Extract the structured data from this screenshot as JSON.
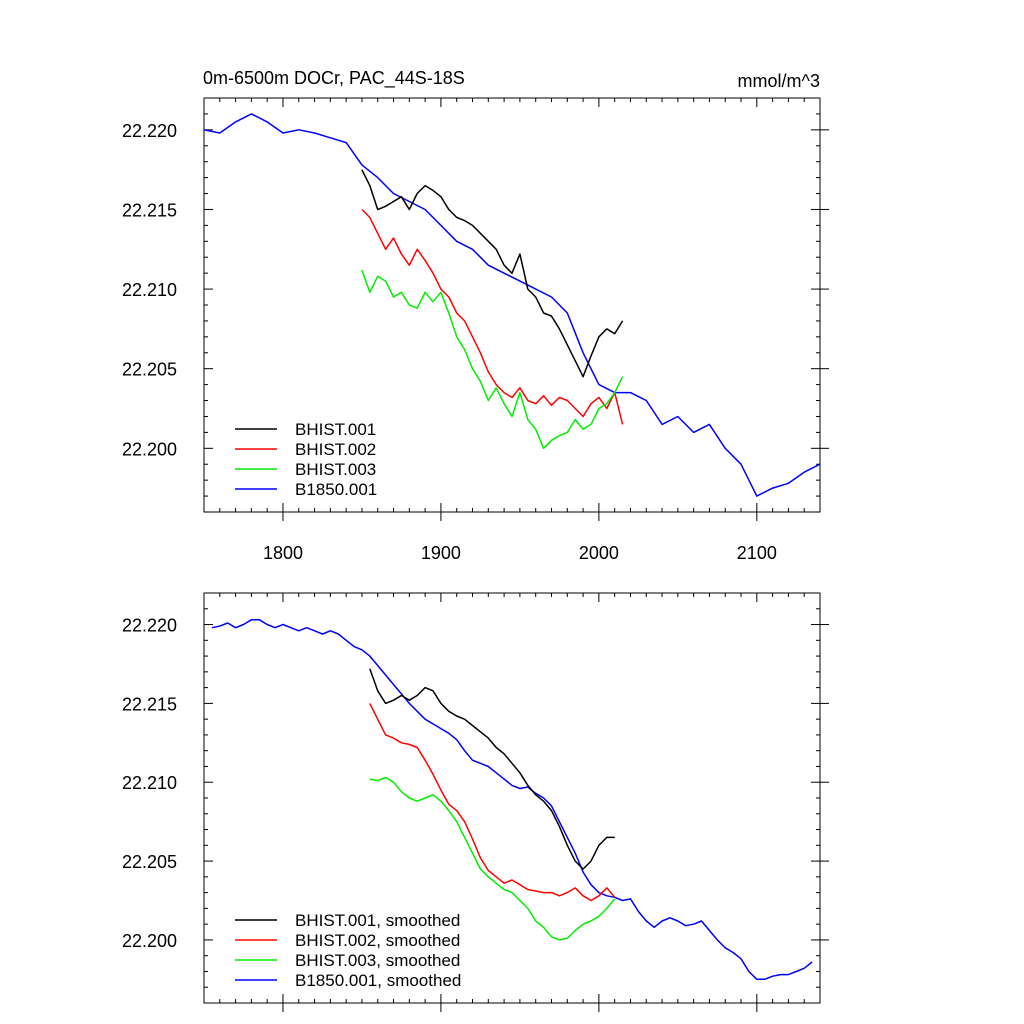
{
  "page": {
    "title_left": "0m-6500m DOCr, PAC_44S-18S",
    "title_right": "mmol/m^3"
  },
  "chart_data": [
    {
      "type": "line",
      "title": "0m-6500m DOCr, PAC_44S-18S",
      "units": "mmol/m^3",
      "xlim": [
        1750,
        2140
      ],
      "ylim": [
        22.196,
        22.222
      ],
      "xticks": [
        1800,
        1900,
        2000,
        2100
      ],
      "yticks": [
        22.2,
        22.205,
        22.21,
        22.215,
        22.22
      ],
      "ytick_labels": [
        "22.200",
        "22.205",
        "22.210",
        "22.215",
        "22.220"
      ],
      "xtick_labels": [
        "1800",
        "1900",
        "2000",
        "2100"
      ],
      "legend_placement": "bottom-left",
      "series": [
        {
          "name": "BHIST.001",
          "color": "#000000",
          "x": [
            1850,
            1855,
            1860,
            1865,
            1870,
            1875,
            1880,
            1885,
            1890,
            1895,
            1900,
            1905,
            1910,
            1915,
            1920,
            1925,
            1930,
            1935,
            1940,
            1945,
            1950,
            1955,
            1960,
            1965,
            1970,
            1975,
            1980,
            1985,
            1990,
            1995,
            2000,
            2005,
            2010,
            2015
          ],
          "y": [
            22.2175,
            22.2165,
            22.215,
            22.2152,
            22.2155,
            22.2158,
            22.215,
            22.216,
            22.2165,
            22.2162,
            22.2158,
            22.215,
            22.2145,
            22.2143,
            22.214,
            22.2135,
            22.213,
            22.2125,
            22.2115,
            22.211,
            22.2122,
            22.21,
            22.2095,
            22.2085,
            22.2083,
            22.2075,
            22.2065,
            22.2055,
            22.2045,
            22.2058,
            22.207,
            22.2075,
            22.2072,
            22.208
          ]
        },
        {
          "name": "BHIST.002",
          "color": "#ff0000",
          "x": [
            1850,
            1855,
            1860,
            1865,
            1870,
            1875,
            1880,
            1885,
            1890,
            1895,
            1900,
            1905,
            1910,
            1915,
            1920,
            1925,
            1930,
            1935,
            1940,
            1945,
            1950,
            1955,
            1960,
            1965,
            1970,
            1975,
            1980,
            1985,
            1990,
            1995,
            2000,
            2005,
            2010,
            2015
          ],
          "y": [
            22.215,
            22.2145,
            22.2135,
            22.2125,
            22.2132,
            22.2122,
            22.2115,
            22.2125,
            22.2118,
            22.211,
            22.21,
            22.2095,
            22.2085,
            22.208,
            22.207,
            22.206,
            22.2048,
            22.204,
            22.2035,
            22.2032,
            22.2038,
            22.203,
            22.2028,
            22.2033,
            22.2027,
            22.2032,
            22.203,
            22.2025,
            22.202,
            22.2028,
            22.2032,
            22.2025,
            22.2035,
            22.2015
          ]
        },
        {
          "name": "BHIST.003",
          "color": "#00ee00",
          "x": [
            1850,
            1855,
            1860,
            1865,
            1870,
            1875,
            1880,
            1885,
            1890,
            1895,
            1900,
            1905,
            1910,
            1915,
            1920,
            1925,
            1930,
            1935,
            1940,
            1945,
            1950,
            1955,
            1960,
            1965,
            1970,
            1975,
            1980,
            1985,
            1990,
            1995,
            2000,
            2005,
            2010,
            2015
          ],
          "y": [
            22.2112,
            22.2098,
            22.2108,
            22.2105,
            22.2095,
            22.2098,
            22.209,
            22.2088,
            22.2098,
            22.2092,
            22.2098,
            22.2085,
            22.207,
            22.2062,
            22.205,
            22.2042,
            22.203,
            22.2038,
            22.2028,
            22.202,
            22.2035,
            22.2018,
            22.2012,
            22.2,
            22.2005,
            22.2008,
            22.201,
            22.2018,
            22.2012,
            22.2015,
            22.2025,
            22.2028,
            22.2035,
            22.2045
          ]
        },
        {
          "name": "B1850.001",
          "color": "#0000ff",
          "x": [
            1750,
            1760,
            1770,
            1780,
            1790,
            1800,
            1810,
            1820,
            1830,
            1840,
            1850,
            1860,
            1870,
            1880,
            1890,
            1900,
            1910,
            1920,
            1930,
            1940,
            1950,
            1960,
            1970,
            1980,
            1990,
            2000,
            2010,
            2020,
            2030,
            2040,
            2050,
            2060,
            2070,
            2080,
            2090,
            2100,
            2110,
            2120,
            2130,
            2140
          ],
          "y": [
            22.22,
            22.2198,
            22.2205,
            22.221,
            22.2205,
            22.2198,
            22.22,
            22.2198,
            22.2195,
            22.2192,
            22.2178,
            22.217,
            22.216,
            22.2155,
            22.215,
            22.214,
            22.213,
            22.2125,
            22.2115,
            22.211,
            22.2105,
            22.21,
            22.2095,
            22.2085,
            22.206,
            22.204,
            22.2035,
            22.2035,
            22.203,
            22.2015,
            22.202,
            22.201,
            22.2015,
            22.2,
            22.199,
            22.197,
            22.1975,
            22.1978,
            22.1985,
            22.199
          ]
        }
      ]
    },
    {
      "type": "line",
      "xlim": [
        1750,
        2140
      ],
      "ylim": [
        22.196,
        22.222
      ],
      "xticks": [
        1800,
        1900,
        2000,
        2100
      ],
      "yticks": [
        22.2,
        22.205,
        22.21,
        22.215,
        22.22
      ],
      "ytick_labels": [
        "22.200",
        "22.205",
        "22.210",
        "22.215",
        "22.220"
      ],
      "legend_placement": "bottom-left",
      "series": [
        {
          "name": "BHIST.001, smoothed",
          "color": "#000000",
          "x": [
            1855,
            1860,
            1865,
            1870,
            1875,
            1880,
            1885,
            1890,
            1895,
            1900,
            1905,
            1910,
            1915,
            1920,
            1925,
            1930,
            1935,
            1940,
            1945,
            1950,
            1955,
            1960,
            1965,
            1970,
            1975,
            1980,
            1985,
            1990,
            1995,
            2000,
            2005,
            2010
          ],
          "y": [
            22.2172,
            22.2158,
            22.215,
            22.2152,
            22.2155,
            22.2152,
            22.2155,
            22.216,
            22.2158,
            22.215,
            22.2145,
            22.2142,
            22.214,
            22.2136,
            22.2132,
            22.2128,
            22.2122,
            22.2118,
            22.2112,
            22.2106,
            22.2098,
            22.2092,
            22.2088,
            22.2082,
            22.2072,
            22.206,
            22.205,
            22.2045,
            22.205,
            22.206,
            22.2065,
            22.2065
          ]
        },
        {
          "name": "BHIST.002, smoothed",
          "color": "#ff0000",
          "x": [
            1855,
            1860,
            1865,
            1870,
            1875,
            1880,
            1885,
            1890,
            1895,
            1900,
            1905,
            1910,
            1915,
            1920,
            1925,
            1930,
            1935,
            1940,
            1945,
            1950,
            1955,
            1960,
            1965,
            1970,
            1975,
            1980,
            1985,
            1990,
            1995,
            2000,
            2005,
            2010
          ],
          "y": [
            22.215,
            22.214,
            22.213,
            22.2128,
            22.2125,
            22.2124,
            22.2122,
            22.2114,
            22.2105,
            22.2095,
            22.2086,
            22.2082,
            22.2075,
            22.2064,
            22.2052,
            22.2044,
            22.204,
            22.2036,
            22.2038,
            22.2035,
            22.2032,
            22.2031,
            22.203,
            22.203,
            22.2028,
            22.203,
            22.2033,
            22.2028,
            22.2025,
            22.2028,
            22.2033,
            22.2027
          ]
        },
        {
          "name": "BHIST.003, smoothed",
          "color": "#00ee00",
          "x": [
            1855,
            1860,
            1865,
            1870,
            1875,
            1880,
            1885,
            1890,
            1895,
            1900,
            1905,
            1910,
            1915,
            1920,
            1925,
            1930,
            1935,
            1940,
            1945,
            1950,
            1955,
            1960,
            1965,
            1970,
            1975,
            1980,
            1985,
            1990,
            1995,
            2000,
            2005,
            2010
          ],
          "y": [
            22.2102,
            22.2101,
            22.2103,
            22.21,
            22.2094,
            22.209,
            22.2088,
            22.209,
            22.2092,
            22.2088,
            22.2082,
            22.2075,
            22.2065,
            22.2055,
            22.2045,
            22.204,
            22.2036,
            22.2032,
            22.203,
            22.2025,
            22.202,
            22.2012,
            22.2008,
            22.2002,
            22.2,
            22.2001,
            22.2006,
            22.201,
            22.2012,
            22.2015,
            22.202,
            22.2026
          ]
        },
        {
          "name": "B1850.001, smoothed",
          "color": "#0000ff",
          "x": [
            1755,
            1760,
            1765,
            1770,
            1775,
            1780,
            1785,
            1790,
            1795,
            1800,
            1805,
            1810,
            1815,
            1820,
            1825,
            1830,
            1835,
            1840,
            1845,
            1850,
            1855,
            1860,
            1865,
            1870,
            1875,
            1880,
            1885,
            1890,
            1895,
            1900,
            1905,
            1910,
            1915,
            1920,
            1925,
            1930,
            1935,
            1940,
            1945,
            1950,
            1955,
            1960,
            1965,
            1970,
            1975,
            1980,
            1985,
            1990,
            1995,
            2000,
            2005,
            2010,
            2015,
            2020,
            2025,
            2030,
            2035,
            2040,
            2045,
            2050,
            2055,
            2060,
            2065,
            2070,
            2075,
            2080,
            2085,
            2090,
            2095,
            2100,
            2105,
            2110,
            2115,
            2120,
            2125,
            2130,
            2135
          ],
          "y": [
            22.2198,
            22.2199,
            22.2201,
            22.2198,
            22.22,
            22.2203,
            22.2203,
            22.22,
            22.2198,
            22.22,
            22.2198,
            22.2196,
            22.2198,
            22.2196,
            22.2194,
            22.2196,
            22.2194,
            22.219,
            22.2186,
            22.2184,
            22.218,
            22.2174,
            22.2168,
            22.2162,
            22.2156,
            22.215,
            22.2145,
            22.214,
            22.2137,
            22.2134,
            22.2131,
            22.2127,
            22.212,
            22.2114,
            22.2112,
            22.211,
            22.2106,
            22.2102,
            22.2098,
            22.2096,
            22.2097,
            22.2093,
            22.209,
            22.2085,
            22.2075,
            22.2065,
            22.2055,
            22.2043,
            22.2035,
            22.203,
            22.2028,
            22.2027,
            22.2025,
            22.2026,
            22.2018,
            22.2012,
            22.2008,
            22.2012,
            22.2014,
            22.2012,
            22.2009,
            22.201,
            22.2012,
            22.2006,
            22.2,
            22.1995,
            22.1992,
            22.1988,
            22.198,
            22.1975,
            22.1975,
            22.1977,
            22.1978,
            22.1978,
            22.198,
            22.1982,
            22.1986
          ]
        }
      ]
    }
  ]
}
